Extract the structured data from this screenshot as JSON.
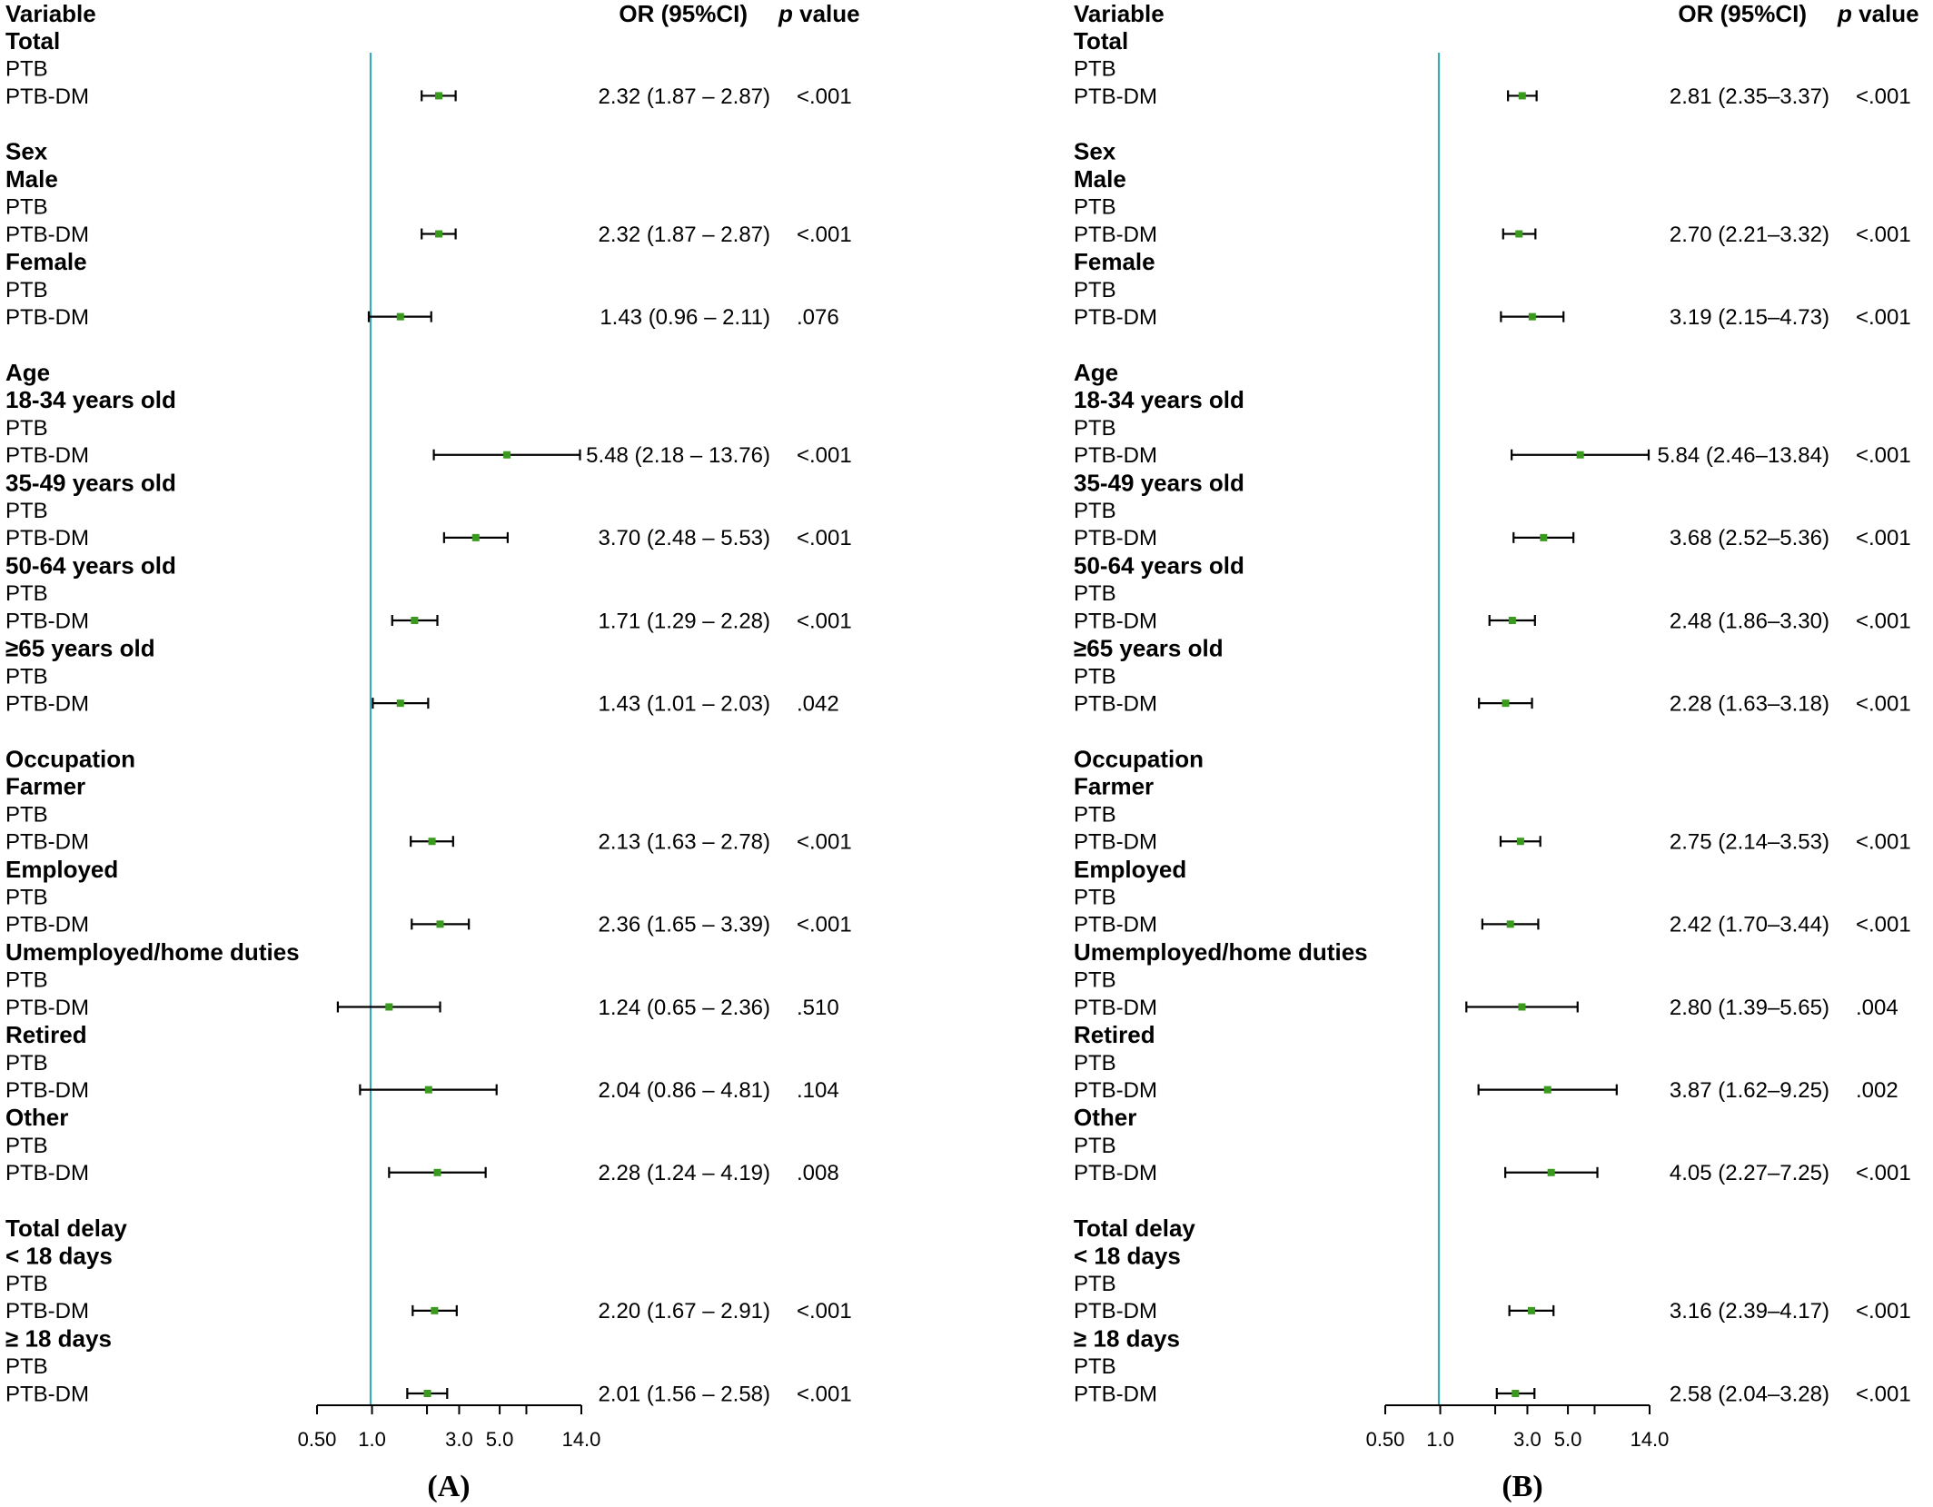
{
  "chart_data": [
    {
      "type": "forest",
      "panel_label": "(A)",
      "headers": {
        "variable": "Variable",
        "or_ci": "OR (95%CI)",
        "p_prefix": "p",
        "p_suffix": " value"
      },
      "x_scale": "log",
      "xlim": [
        0.5,
        14.0
      ],
      "ref_line": 1.0,
      "ref_color": "#3aaab8",
      "point_color": "#3a9a1e",
      "x_ticks": [
        "0.50",
        "1.0",
        "3.0",
        "5.0",
        "14.0"
      ],
      "groups": [
        {
          "heading": "Total",
          "subgroups": [
            {
              "label": null,
              "rows": [
                {
                  "label": "PTB"
                },
                {
                  "label": "PTB-DM",
                  "or": 2.32,
                  "lo": 1.87,
                  "hi": 2.87,
                  "ci_text": "2.32 (1.87 – 2.87)",
                  "p": "<.001"
                }
              ]
            }
          ]
        },
        {
          "heading": "Sex",
          "subgroups": [
            {
              "label": "Male",
              "rows": [
                {
                  "label": "PTB"
                },
                {
                  "label": "PTB-DM",
                  "or": 2.32,
                  "lo": 1.87,
                  "hi": 2.87,
                  "ci_text": "2.32 (1.87 – 2.87)",
                  "p": "<.001"
                }
              ]
            },
            {
              "label": "Female",
              "rows": [
                {
                  "label": "PTB"
                },
                {
                  "label": "PTB-DM",
                  "or": 1.43,
                  "lo": 0.96,
                  "hi": 2.11,
                  "ci_text": "1.43 (0.96 – 2.11)",
                  "p": ".076"
                }
              ]
            }
          ]
        },
        {
          "heading": "Age",
          "subgroups": [
            {
              "label": "18-34 years old",
              "rows": [
                {
                  "label": "PTB"
                },
                {
                  "label": "PTB-DM",
                  "or": 5.48,
                  "lo": 2.18,
                  "hi": 13.76,
                  "ci_text": "5.48 (2.18 – 13.76)",
                  "p": "<.001"
                }
              ]
            },
            {
              "label": "35-49 years old",
              "rows": [
                {
                  "label": "PTB"
                },
                {
                  "label": "PTB-DM",
                  "or": 3.7,
                  "lo": 2.48,
                  "hi": 5.53,
                  "ci_text": "3.70 (2.48 – 5.53)",
                  "p": "<.001"
                }
              ]
            },
            {
              "label": "50-64 years old",
              "rows": [
                {
                  "label": "PTB"
                },
                {
                  "label": "PTB-DM",
                  "or": 1.71,
                  "lo": 1.29,
                  "hi": 2.28,
                  "ci_text": "1.71 (1.29 – 2.28)",
                  "p": "<.001"
                }
              ]
            },
            {
              "label": "≥65 years old",
              "rows": [
                {
                  "label": "PTB"
                },
                {
                  "label": "PTB-DM",
                  "or": 1.43,
                  "lo": 1.01,
                  "hi": 2.03,
                  "ci_text": "1.43 (1.01 – 2.03)",
                  "p": ".042"
                }
              ]
            }
          ]
        },
        {
          "heading": "Occupation",
          "subgroups": [
            {
              "label": "Farmer",
              "rows": [
                {
                  "label": "PTB"
                },
                {
                  "label": "PTB-DM",
                  "or": 2.13,
                  "lo": 1.63,
                  "hi": 2.78,
                  "ci_text": "2.13 (1.63 – 2.78)",
                  "p": "<.001"
                }
              ]
            },
            {
              "label": "Employed",
              "rows": [
                {
                  "label": "PTB"
                },
                {
                  "label": "PTB-DM",
                  "or": 2.36,
                  "lo": 1.65,
                  "hi": 3.39,
                  "ci_text": "2.36 (1.65 – 3.39)",
                  "p": "<.001"
                }
              ]
            },
            {
              "label": "Umemployed/home duties",
              "rows": [
                {
                  "label": "PTB"
                },
                {
                  "label": "PTB-DM",
                  "or": 1.24,
                  "lo": 0.65,
                  "hi": 2.36,
                  "ci_text": "1.24 (0.65 – 2.36)",
                  "p": ".510"
                }
              ]
            },
            {
              "label": "Retired",
              "rows": [
                {
                  "label": "PTB"
                },
                {
                  "label": "PTB-DM",
                  "or": 2.04,
                  "lo": 0.86,
                  "hi": 4.81,
                  "ci_text": "2.04 (0.86 – 4.81)",
                  "p": ".104"
                }
              ]
            },
            {
              "label": "Other",
              "rows": [
                {
                  "label": "PTB"
                },
                {
                  "label": "PTB-DM",
                  "or": 2.28,
                  "lo": 1.24,
                  "hi": 4.19,
                  "ci_text": "2.28 (1.24 – 4.19)",
                  "p": ".008"
                }
              ]
            }
          ]
        },
        {
          "heading": "Total delay",
          "subgroups": [
            {
              "label": "< 18 days",
              "rows": [
                {
                  "label": "PTB"
                },
                {
                  "label": "PTB-DM",
                  "or": 2.2,
                  "lo": 1.67,
                  "hi": 2.91,
                  "ci_text": "2.20 (1.67 – 2.91)",
                  "p": "<.001"
                }
              ]
            },
            {
              "label": "≥ 18 days",
              "rows": [
                {
                  "label": "PTB"
                },
                {
                  "label": "PTB-DM",
                  "or": 2.01,
                  "lo": 1.56,
                  "hi": 2.58,
                  "ci_text": "2.01 (1.56 – 2.58)",
                  "p": "<.001"
                }
              ]
            }
          ]
        }
      ]
    },
    {
      "type": "forest",
      "panel_label": "(B)",
      "headers": {
        "variable": "Variable",
        "or_ci": "OR (95%CI)",
        "p_prefix": "p",
        "p_suffix": " value"
      },
      "x_scale": "log",
      "xlim": [
        0.5,
        14.0
      ],
      "ref_line": 1.0,
      "ref_color": "#3aaab8",
      "point_color": "#3a9a1e",
      "x_ticks": [
        "0.50",
        "1.0",
        "3.0",
        "5.0",
        "14.0"
      ],
      "groups": [
        {
          "heading": "Total",
          "subgroups": [
            {
              "label": null,
              "rows": [
                {
                  "label": "PTB"
                },
                {
                  "label": "PTB-DM",
                  "or": 2.81,
                  "lo": 2.35,
                  "hi": 3.37,
                  "ci_text": "2.81 (2.35–3.37)",
                  "p": "<.001"
                }
              ]
            }
          ]
        },
        {
          "heading": "Sex",
          "subgroups": [
            {
              "label": "Male",
              "rows": [
                {
                  "label": "PTB"
                },
                {
                  "label": "PTB-DM",
                  "or": 2.7,
                  "lo": 2.21,
                  "hi": 3.32,
                  "ci_text": "2.70 (2.21–3.32)",
                  "p": "<.001"
                }
              ]
            },
            {
              "label": "Female",
              "rows": [
                {
                  "label": "PTB"
                },
                {
                  "label": "PTB-DM",
                  "or": 3.19,
                  "lo": 2.15,
                  "hi": 4.73,
                  "ci_text": "3.19 (2.15–4.73)",
                  "p": "<.001"
                }
              ]
            }
          ]
        },
        {
          "heading": "Age",
          "subgroups": [
            {
              "label": "18-34 years old",
              "rows": [
                {
                  "label": "PTB"
                },
                {
                  "label": "PTB-DM",
                  "or": 5.84,
                  "lo": 2.46,
                  "hi": 13.84,
                  "ci_text": "5.84 (2.46–13.84)",
                  "p": "<.001"
                }
              ]
            },
            {
              "label": "35-49 years old",
              "rows": [
                {
                  "label": "PTB"
                },
                {
                  "label": "PTB-DM",
                  "or": 3.68,
                  "lo": 2.52,
                  "hi": 5.36,
                  "ci_text": "3.68 (2.52–5.36)",
                  "p": "<.001"
                }
              ]
            },
            {
              "label": "50-64 years old",
              "rows": [
                {
                  "label": "PTB"
                },
                {
                  "label": "PTB-DM",
                  "or": 2.48,
                  "lo": 1.86,
                  "hi": 3.3,
                  "ci_text": "2.48 (1.86–3.30)",
                  "p": "<.001"
                }
              ]
            },
            {
              "label": "≥65 years old",
              "rows": [
                {
                  "label": "PTB"
                },
                {
                  "label": "PTB-DM",
                  "or": 2.28,
                  "lo": 1.63,
                  "hi": 3.18,
                  "ci_text": "2.28 (1.63–3.18)",
                  "p": "<.001"
                }
              ]
            }
          ]
        },
        {
          "heading": "Occupation",
          "subgroups": [
            {
              "label": "Farmer",
              "rows": [
                {
                  "label": "PTB"
                },
                {
                  "label": "PTB-DM",
                  "or": 2.75,
                  "lo": 2.14,
                  "hi": 3.53,
                  "ci_text": "2.75 (2.14–3.53)",
                  "p": "<.001"
                }
              ]
            },
            {
              "label": "Employed",
              "rows": [
                {
                  "label": "PTB"
                },
                {
                  "label": "PTB-DM",
                  "or": 2.42,
                  "lo": 1.7,
                  "hi": 3.44,
                  "ci_text": "2.42 (1.70–3.44)",
                  "p": "<.001"
                }
              ]
            },
            {
              "label": "Umemployed/home duties",
              "rows": [
                {
                  "label": "PTB"
                },
                {
                  "label": "PTB-DM",
                  "or": 2.8,
                  "lo": 1.39,
                  "hi": 5.65,
                  "ci_text": "2.80 (1.39–5.65)",
                  "p": ".004"
                }
              ]
            },
            {
              "label": "Retired",
              "rows": [
                {
                  "label": "PTB"
                },
                {
                  "label": "PTB-DM",
                  "or": 3.87,
                  "lo": 1.62,
                  "hi": 9.25,
                  "ci_text": "3.87 (1.62–9.25)",
                  "p": ".002"
                }
              ]
            },
            {
              "label": "Other",
              "rows": [
                {
                  "label": "PTB"
                },
                {
                  "label": "PTB-DM",
                  "or": 4.05,
                  "lo": 2.27,
                  "hi": 7.25,
                  "ci_text": "4.05 (2.27–7.25)",
                  "p": "<.001"
                }
              ]
            }
          ]
        },
        {
          "heading": "Total delay",
          "subgroups": [
            {
              "label": "< 18 days",
              "rows": [
                {
                  "label": "PTB"
                },
                {
                  "label": "PTB-DM",
                  "or": 3.16,
                  "lo": 2.39,
                  "hi": 4.17,
                  "ci_text": "3.16 (2.39–4.17)",
                  "p": "<.001"
                }
              ]
            },
            {
              "label": "≥ 18 days",
              "rows": [
                {
                  "label": "PTB"
                },
                {
                  "label": "PTB-DM",
                  "or": 2.58,
                  "lo": 2.04,
                  "hi": 3.28,
                  "ci_text": "2.58 (2.04–3.28)",
                  "p": "<.001"
                }
              ]
            }
          ]
        }
      ]
    }
  ]
}
